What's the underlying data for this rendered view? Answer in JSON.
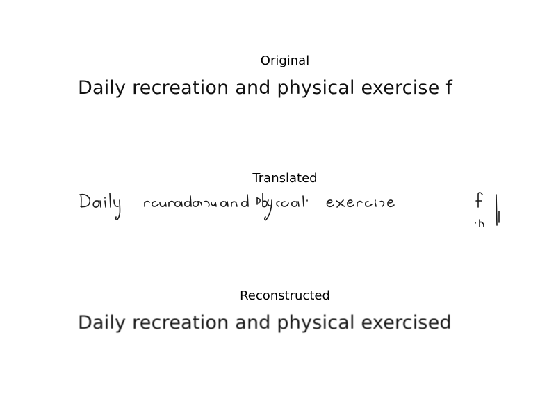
{
  "panels": {
    "original": {
      "title": "Original",
      "text": "Daily recreation and physical exercise f"
    },
    "translated": {
      "title": "Translated",
      "handwritten_text": "Daily recreation and physical exercise f"
    },
    "reconstructed": {
      "title": "Reconstructed",
      "text": "Daily recreation and physical exercised"
    }
  }
}
